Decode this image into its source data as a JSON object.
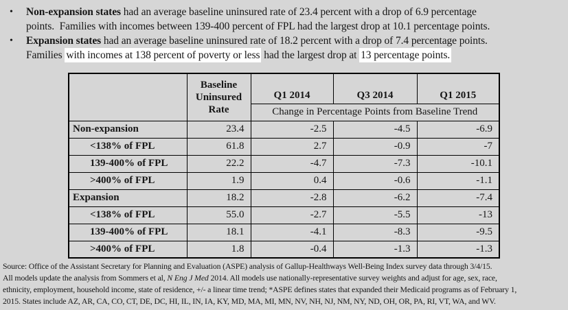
{
  "colors": {
    "page_background": "#d6d6d6",
    "table_cell_background": "#d6d6d6",
    "highlight_background": "#ffffff",
    "border_color": "#000000",
    "text_color": "#161616"
  },
  "bullet_char": "•",
  "bullets": [
    {
      "lines": [
        {
          "segments": [
            {
              "text": "Non-expansion states",
              "bold": true,
              "highlight": false
            },
            {
              "text": " had an average baseline uninsured rate of 23.4 percent with a drop of 6.9 percentage",
              "bold": false,
              "highlight": false
            }
          ]
        },
        {
          "segments": [
            {
              "text": "points.  Families with incomes between 139-400 percent of FPL had the largest drop at 10.1 percentage points.",
              "bold": false,
              "highlight": false
            }
          ]
        }
      ]
    },
    {
      "lines": [
        {
          "segments": [
            {
              "text": "Expansion states",
              "bold": true,
              "highlight": false
            },
            {
              "text": " had an average baseline uninsured rate of 18.2 percent with a drop of 7.4 percentage points.",
              "bold": false,
              "highlight": false
            }
          ]
        },
        {
          "segments": [
            {
              "text": "Families ",
              "bold": false,
              "highlight": false
            },
            {
              "text": "with incomes at 138 percent of poverty or less",
              "bold": false,
              "highlight": true
            },
            {
              "text": " had the largest drop at ",
              "bold": false,
              "highlight": false
            },
            {
              "text": "13 percentage points.",
              "bold": false,
              "highlight": true
            }
          ]
        }
      ]
    }
  ],
  "table": {
    "header": {
      "corner": "",
      "baseline_label": "Baseline Uninsured Rate",
      "q1_2014": "Q1 2014",
      "q3_2014": "Q3 2014",
      "q1_2015": "Q1 2015",
      "change_label": "Change in Percentage Points from Baseline Trend"
    },
    "rows": [
      {
        "label": "Non-expansion",
        "indent": false,
        "baseline": "23.4",
        "q1_2014": "-2.5",
        "q3_2014": "-4.5",
        "q1_2015": "-6.9"
      },
      {
        "label": "<138% of FPL",
        "indent": true,
        "baseline": "61.8",
        "q1_2014": "2.7",
        "q3_2014": "-0.9",
        "q1_2015": "-7"
      },
      {
        "label": "139-400% of FPL",
        "indent": true,
        "baseline": "22.2",
        "q1_2014": "-4.7",
        "q3_2014": "-7.3",
        "q1_2015": "-10.1"
      },
      {
        "label": ">400% of FPL",
        "indent": true,
        "baseline": "1.9",
        "q1_2014": "0.4",
        "q3_2014": "-0.6",
        "q1_2015": "-1.1"
      },
      {
        "label": "Expansion",
        "indent": false,
        "baseline": "18.2",
        "q1_2014": "-2.8",
        "q3_2014": "-6.2",
        "q1_2015": "-7.4"
      },
      {
        "label": "<138% of FPL",
        "indent": true,
        "baseline": "55.0",
        "q1_2014": "-2.7",
        "q3_2014": "-5.5",
        "q1_2015": "-13"
      },
      {
        "label": "139-400% of FPL",
        "indent": true,
        "baseline": "18.1",
        "q1_2014": "-4.1",
        "q3_2014": "-8.3",
        "q1_2015": "-9.5"
      },
      {
        "label": ">400% of FPL",
        "indent": true,
        "baseline": "1.8",
        "q1_2014": "-0.4",
        "q3_2014": "-1.3",
        "q1_2015": "-1.3"
      }
    ]
  },
  "source_note": {
    "line1": "Source: Office of the Assistant Secretary for Planning and Evaluation (ASPE) analysis of Gallup-Healthways Well-Being Index survey data through 3/4/15.",
    "line2_pre": "All models update the analysis from Sommers et al, ",
    "line2_italic": "N Eng J Med",
    "line2_post": " 2014. All models use nationally-representative survey weights and adjust for age, sex, race,",
    "line3": "ethnicity, employment, household income, state of residence, +/- a linear time trend; *ASPE defines states that expanded their Medicaid programs as of February 1,",
    "line4": "2015. States include AZ, AR, CA, CO, CT, DE, DC, HI, IL, IN, IA, KY, MD, MA, MI, MN, NV, NH, NJ, NM, NY, ND, OH, OR, PA, RI, VT, WA, and WV."
  }
}
